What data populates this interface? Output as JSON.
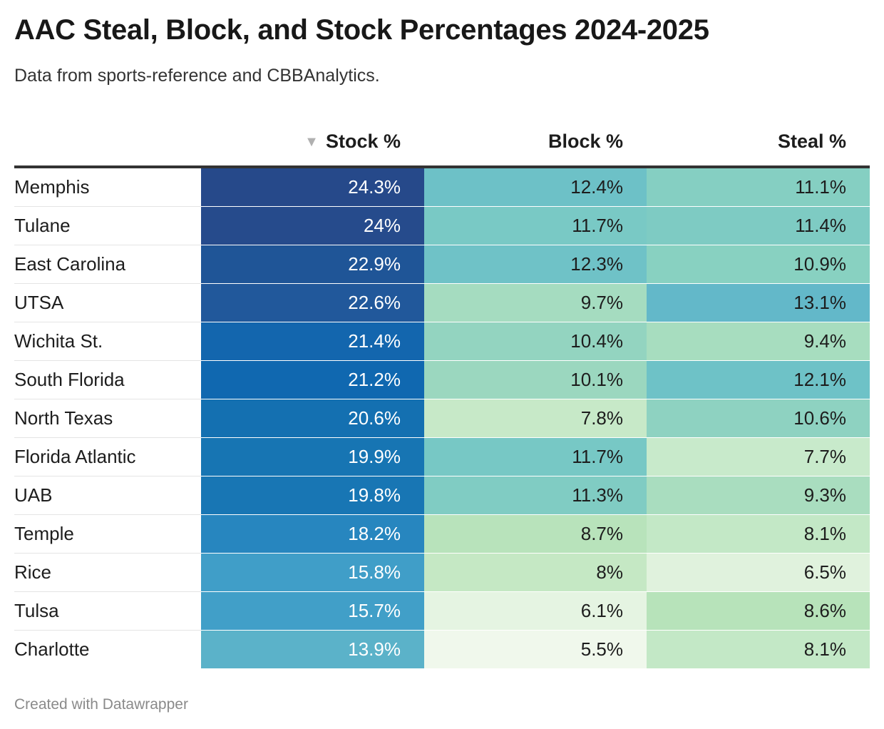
{
  "title": "AAC Steal, Block, and Stock Percentages 2024-2025",
  "subtitle": "Data from sports-reference and CBBAnalytics.",
  "footer": "Created with Datawrapper",
  "sort_indicator": "▼",
  "chart_data": {
    "type": "table",
    "sorted_by": "Stock %",
    "sort_order": "descending",
    "columns": [
      "",
      "Stock %",
      "Block %",
      "Steal %"
    ],
    "rows": [
      {
        "team": "Memphis",
        "stock": "24.3%",
        "block": "12.4%",
        "steal": "11.1%",
        "stock_color": "#26498a",
        "block_color": "#6dc1c7",
        "steal_color": "#85cfc2"
      },
      {
        "team": "Tulane",
        "stock": "24%",
        "block": "11.7%",
        "steal": "11.4%",
        "stock_color": "#264b8c",
        "block_color": "#79c9c5",
        "steal_color": "#7ecbc3"
      },
      {
        "team": "East Carolina",
        "stock": "22.9%",
        "block": "12.3%",
        "steal": "10.9%",
        "stock_color": "#1f5597",
        "block_color": "#6fc2c7",
        "steal_color": "#88d1c1"
      },
      {
        "team": "UTSA",
        "stock": "22.6%",
        "block": "9.7%",
        "steal": "13.1%",
        "stock_color": "#21589b",
        "block_color": "#a5dcc0",
        "steal_color": "#63b8c9"
      },
      {
        "team": "Wichita St.",
        "stock": "21.4%",
        "block": "10.4%",
        "steal": "9.4%",
        "stock_color": "#1366ae",
        "block_color": "#93d4c0",
        "steal_color": "#a7ddbf"
      },
      {
        "team": "South Florida",
        "stock": "21.2%",
        "block": "10.1%",
        "steal": "12.1%",
        "stock_color": "#1068b0",
        "block_color": "#9bd7bf",
        "steal_color": "#6ec2c7"
      },
      {
        "team": "North Texas",
        "stock": "20.6%",
        "block": "7.8%",
        "steal": "10.6%",
        "stock_color": "#1470b1",
        "block_color": "#c7e9c8",
        "steal_color": "#8ed2c1"
      },
      {
        "team": "Florida Atlantic",
        "stock": "19.9%",
        "block": "11.7%",
        "steal": "7.7%",
        "stock_color": "#1775b3",
        "block_color": "#77c8c5",
        "steal_color": "#c8eacb"
      },
      {
        "team": "UAB",
        "stock": "19.8%",
        "block": "11.3%",
        "steal": "9.3%",
        "stock_color": "#1876b4",
        "block_color": "#80ccc3",
        "steal_color": "#a9ddbf"
      },
      {
        "team": "Temple",
        "stock": "18.2%",
        "block": "8.7%",
        "steal": "8.1%",
        "stock_color": "#2786bf",
        "block_color": "#b8e3bb",
        "steal_color": "#c3e8c6"
      },
      {
        "team": "Rice",
        "stock": "15.8%",
        "block": "8%",
        "steal": "6.5%",
        "stock_color": "#409ec8",
        "block_color": "#c5e8c4",
        "steal_color": "#e0f2dd"
      },
      {
        "team": "Tulsa",
        "stock": "15.7%",
        "block": "6.1%",
        "steal": "8.6%",
        "stock_color": "#419fc8",
        "block_color": "#e5f4e2",
        "steal_color": "#b7e3ba"
      },
      {
        "team": "Charlotte",
        "stock": "13.9%",
        "block": "5.5%",
        "steal": "8.1%",
        "stock_color": "#5bb2c9",
        "block_color": "#f0f8ec",
        "steal_color": "#c3e8c6"
      }
    ]
  }
}
